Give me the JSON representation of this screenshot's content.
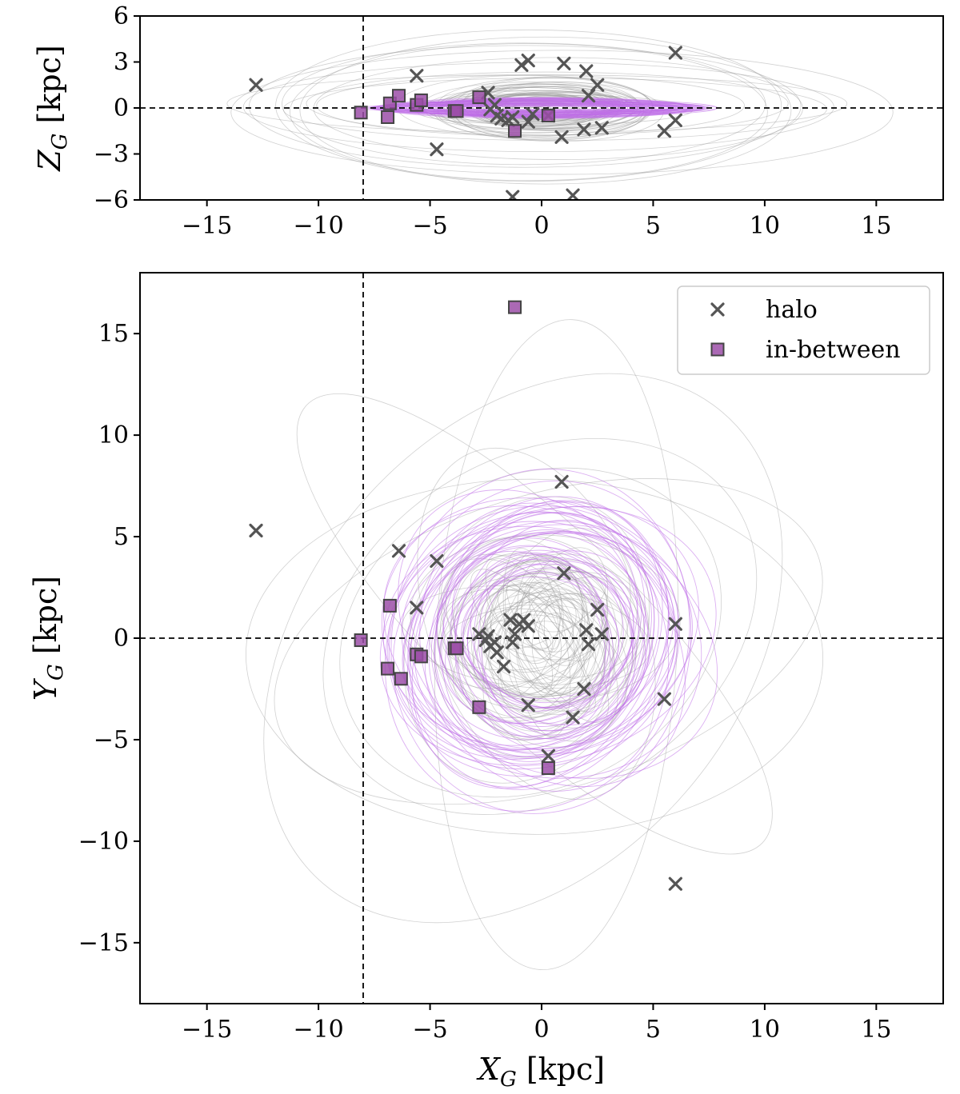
{
  "chart_data": [
    {
      "type": "scatter",
      "panel": "top",
      "xlabel": "X_G [kpc]",
      "ylabel": "Z_G [kpc]",
      "xlim": [
        -18,
        18
      ],
      "ylim": [
        -6,
        6
      ],
      "xticks": [
        -15,
        -10,
        -5,
        0,
        5,
        10,
        15
      ],
      "yticks": [
        -6,
        -3,
        0,
        3,
        6
      ],
      "reference_lines": {
        "x": -8.1,
        "y": 0
      },
      "series": [
        {
          "name": "halo",
          "marker": "x",
          "color": "#555555",
          "points": [
            [
              -12.8,
              1.5
            ],
            [
              -5.6,
              2.1
            ],
            [
              -4.7,
              -2.7
            ],
            [
              -2.4,
              1.0
            ],
            [
              -2.3,
              -0.1
            ],
            [
              -2.1,
              0.2
            ],
            [
              -2.0,
              -0.5
            ],
            [
              -1.8,
              -0.7
            ],
            [
              -1.5,
              -0.8
            ],
            [
              -1.3,
              -0.6
            ],
            [
              -1.3,
              -5.8
            ],
            [
              -0.9,
              2.8
            ],
            [
              -0.6,
              3.1
            ],
            [
              -0.6,
              -0.9
            ],
            [
              -0.4,
              -0.4
            ],
            [
              0.3,
              -0.5
            ],
            [
              0.9,
              -1.9
            ],
            [
              1.0,
              2.9
            ],
            [
              1.4,
              -5.7
            ],
            [
              1.9,
              -1.4
            ],
            [
              2.0,
              2.4
            ],
            [
              2.1,
              0.8
            ],
            [
              2.5,
              1.5
            ],
            [
              2.7,
              -1.3
            ],
            [
              5.5,
              -1.5
            ],
            [
              6.0,
              3.6
            ],
            [
              6.0,
              -0.8
            ]
          ]
        },
        {
          "name": "in-between",
          "marker": "square",
          "color": "#9c4fa8",
          "points": [
            [
              -8.1,
              -0.3
            ],
            [
              -6.9,
              -0.6
            ],
            [
              -6.8,
              0.3
            ],
            [
              -6.4,
              0.8
            ],
            [
              -5.6,
              0.2
            ],
            [
              -5.4,
              0.5
            ],
            [
              -3.9,
              -0.2
            ],
            [
              -3.8,
              -0.2
            ],
            [
              -2.8,
              0.7
            ],
            [
              -1.2,
              -1.5
            ],
            [
              0.3,
              -0.5
            ]
          ]
        }
      ]
    },
    {
      "type": "scatter",
      "panel": "bottom",
      "xlabel": "X_G [kpc]",
      "ylabel": "Y_G [kpc]",
      "xlim": [
        -18,
        18
      ],
      "ylim": [
        -18,
        18
      ],
      "xticks": [
        -15,
        -10,
        -5,
        0,
        5,
        10,
        15
      ],
      "yticks": [
        -15,
        -10,
        -5,
        0,
        5,
        10,
        15
      ],
      "reference_lines": {
        "x": -8.1,
        "y": 0
      },
      "legend": {
        "position": "top-right",
        "entries": [
          "halo",
          "in-between"
        ]
      },
      "series": [
        {
          "name": "halo",
          "marker": "x",
          "color": "#555555",
          "points": [
            [
              -12.8,
              5.3
            ],
            [
              -6.4,
              4.3
            ],
            [
              -4.7,
              3.8
            ],
            [
              -5.6,
              1.5
            ],
            [
              -2.8,
              0.2
            ],
            [
              -2.5,
              -0.1
            ],
            [
              -2.4,
              0.1
            ],
            [
              -2.3,
              -0.4
            ],
            [
              -2.1,
              -0.2
            ],
            [
              -2.0,
              -0.7
            ],
            [
              -1.7,
              -1.4
            ],
            [
              -1.4,
              0.9
            ],
            [
              -1.3,
              -0.2
            ],
            [
              -1.2,
              0.2
            ],
            [
              -1.0,
              0.7
            ],
            [
              -0.8,
              0.9
            ],
            [
              -0.6,
              0.6
            ],
            [
              -0.6,
              -3.3
            ],
            [
              0.3,
              -5.8
            ],
            [
              0.9,
              7.7
            ],
            [
              1.0,
              3.2
            ],
            [
              1.4,
              -3.9
            ],
            [
              1.9,
              -2.5
            ],
            [
              2.0,
              0.4
            ],
            [
              2.1,
              -0.3
            ],
            [
              2.5,
              1.4
            ],
            [
              2.7,
              0.2
            ],
            [
              5.5,
              -3.0
            ],
            [
              6.0,
              0.7
            ],
            [
              6.0,
              -12.1
            ]
          ]
        },
        {
          "name": "in-between",
          "marker": "square",
          "color": "#9c4fa8",
          "points": [
            [
              -8.1,
              -0.1
            ],
            [
              -6.9,
              -1.5
            ],
            [
              -6.8,
              1.6
            ],
            [
              -6.3,
              -2.0
            ],
            [
              -5.6,
              -0.8
            ],
            [
              -5.4,
              -0.9
            ],
            [
              -3.9,
              -0.5
            ],
            [
              -3.8,
              -0.5
            ],
            [
              -2.8,
              -3.4
            ],
            [
              -1.2,
              16.3
            ],
            [
              0.3,
              -6.4
            ]
          ]
        }
      ]
    }
  ]
}
